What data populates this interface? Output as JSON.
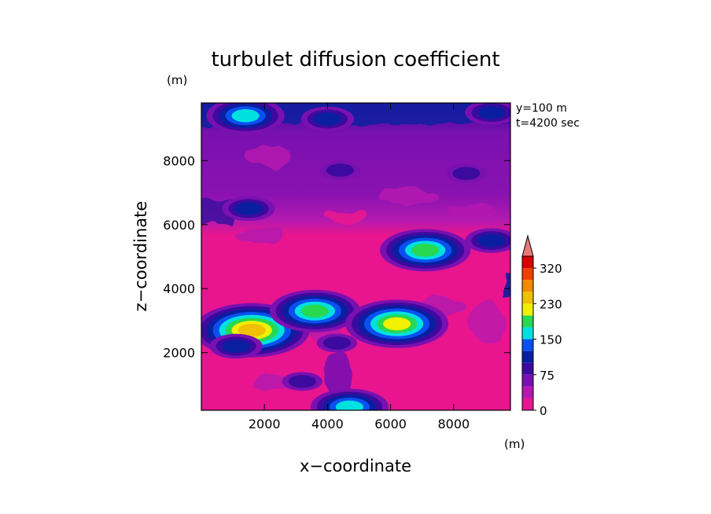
{
  "chart_data": {
    "type": "heatmap",
    "title": "turbulet diffusion coefficient",
    "xlabel": "x−coordinate",
    "ylabel": "z−coordinate",
    "x_unit": "(m)",
    "y_unit": "(m)",
    "annotations": [
      "y=100  m",
      "t=4200 sec"
    ],
    "xlim": [
      0,
      9800
    ],
    "ylim": [
      200,
      9800
    ],
    "x_ticks": [
      2000,
      4000,
      6000,
      8000
    ],
    "y_ticks": [
      2000,
      4000,
      6000,
      8000
    ],
    "x_tick_labels": [
      "2000",
      "4000",
      "6000",
      "8000"
    ],
    "y_tick_labels": [
      "2000",
      "4000",
      "6000",
      "8000"
    ],
    "colorbar": {
      "levels": [
        0,
        25,
        50,
        75,
        100,
        125,
        150,
        175,
        200,
        230,
        260,
        290,
        320
      ],
      "tick_labels": [
        "0",
        "75",
        "150",
        "230",
        "320"
      ],
      "tick_values": [
        0,
        75,
        150,
        230,
        320
      ],
      "colors": [
        "#e8158f",
        "#b21ab0",
        "#7a10b0",
        "#3c0a9e",
        "#0a1ea0",
        "#0a50f0",
        "#00e0e0",
        "#28d850",
        "#f0f000",
        "#f0c000",
        "#f08a00",
        "#f04000",
        "#d80000"
      ],
      "extend": "max",
      "extend_color": "#e87878"
    },
    "features": [
      {
        "x": 1400,
        "z": 9400,
        "value": 150
      },
      {
        "x": 9200,
        "z": 9500,
        "value": 100
      },
      {
        "x": 4000,
        "z": 9300,
        "value": 100
      },
      {
        "x": 8400,
        "z": 7600,
        "value": 75
      },
      {
        "x": 4400,
        "z": 7700,
        "value": 75
      },
      {
        "x": 1500,
        "z": 6500,
        "value": 100
      },
      {
        "x": 9200,
        "z": 5500,
        "value": 100
      },
      {
        "x": 7100,
        "z": 5200,
        "value": 175
      },
      {
        "x": 1600,
        "z": 2700,
        "value": 230
      },
      {
        "x": 3600,
        "z": 3300,
        "value": 175
      },
      {
        "x": 6200,
        "z": 2900,
        "value": 200
      },
      {
        "x": 4300,
        "z": 2300,
        "value": 75
      },
      {
        "x": 1100,
        "z": 2200,
        "value": 100
      },
      {
        "x": 3200,
        "z": 1100,
        "value": 75
      },
      {
        "x": 4700,
        "z": 300,
        "value": 150
      }
    ]
  }
}
